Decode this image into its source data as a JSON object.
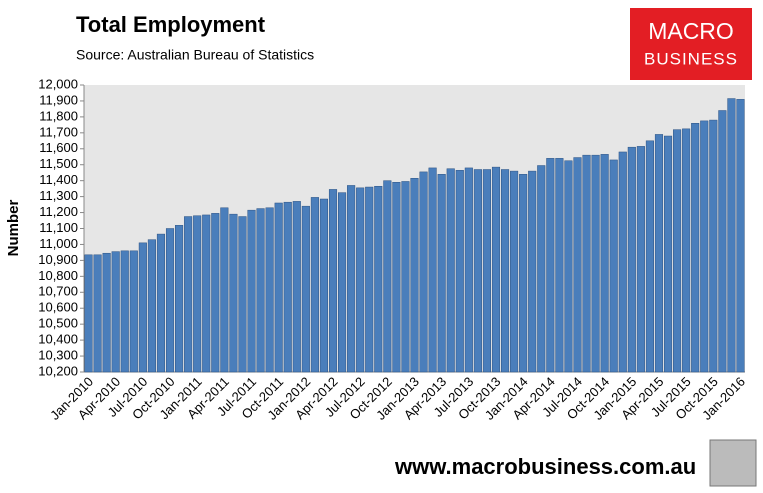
{
  "chart_data": {
    "type": "bar",
    "title": "Total Employment",
    "subtitle": "Source: Australian Bureau of Statistics",
    "y_label": "Number",
    "categories": [
      "Jan-2010",
      null,
      null,
      "Apr-2010",
      null,
      null,
      "Jul-2010",
      null,
      null,
      "Oct-2010",
      null,
      null,
      "Jan-2011",
      null,
      null,
      "Apr-2011",
      null,
      null,
      "Jul-2011",
      null,
      null,
      "Oct-2011",
      null,
      null,
      "Jan-2012",
      null,
      null,
      "Apr-2012",
      null,
      null,
      "Jul-2012",
      null,
      null,
      "Oct-2012",
      null,
      null,
      "Jan-2013",
      null,
      null,
      "Apr-2013",
      null,
      null,
      "Jul-2013",
      null,
      null,
      "Oct-2013",
      null,
      null,
      "Jan-2014",
      null,
      null,
      "Apr-2014",
      null,
      null,
      "Jul-2014",
      null,
      null,
      "Oct-2014",
      null,
      null,
      "Jan-2015",
      null,
      null,
      "Apr-2015",
      null,
      null,
      "Jul-2015",
      null,
      null,
      "Oct-2015",
      null,
      null,
      "Jan-2016"
    ],
    "values": [
      10935,
      10935,
      10945,
      10955,
      10960,
      10960,
      11010,
      11030,
      11065,
      11100,
      11120,
      11175,
      11180,
      11185,
      11195,
      11230,
      11190,
      11175,
      11215,
      11225,
      11230,
      11260,
      11265,
      11270,
      11240,
      11295,
      11285,
      11345,
      11325,
      11370,
      11355,
      11360,
      11365,
      11400,
      11390,
      11395,
      11415,
      11455,
      11480,
      11440,
      11475,
      11465,
      11480,
      11470,
      11470,
      11485,
      11470,
      11460,
      11440,
      11460,
      11495,
      11540,
      11540,
      11525,
      11545,
      11560,
      11560,
      11565,
      11530,
      11580,
      11610,
      11615,
      11650,
      11690,
      11680,
      11720,
      11725,
      11760,
      11775,
      11780,
      11840,
      11915,
      11910
    ],
    "color": "#4a7ebb",
    "ylim": [
      10200,
      12000
    ],
    "yticks": [
      {
        "value": 10200,
        "label": "10,200"
      },
      {
        "value": 10300,
        "label": "10,300"
      },
      {
        "value": 10400,
        "label": "10,400"
      },
      {
        "value": 10500,
        "label": "10,500"
      },
      {
        "value": 10600,
        "label": "10,600"
      },
      {
        "value": 10700,
        "label": "10,700"
      },
      {
        "value": 10800,
        "label": "10,800"
      },
      {
        "value": 10900,
        "label": "10,900"
      },
      {
        "value": 11000,
        "label": "11,000"
      },
      {
        "value": 11100,
        "label": "11,100"
      },
      {
        "value": 11200,
        "label": "11,200"
      },
      {
        "value": 11300,
        "label": "11,300"
      },
      {
        "value": 11400,
        "label": "11,400"
      },
      {
        "value": 11500,
        "label": "11,500"
      },
      {
        "value": 11600,
        "label": "11,600"
      },
      {
        "value": 11700,
        "label": "11,700"
      },
      {
        "value": 11800,
        "label": "11,800"
      },
      {
        "value": 11900,
        "label": "11,900"
      },
      {
        "value": 12000,
        "label": "12,000"
      }
    ],
    "grid": false
  },
  "logo": {
    "line1": "MACRO",
    "line2": "BUSINESS"
  },
  "website": "www.macrobusiness.com.au"
}
